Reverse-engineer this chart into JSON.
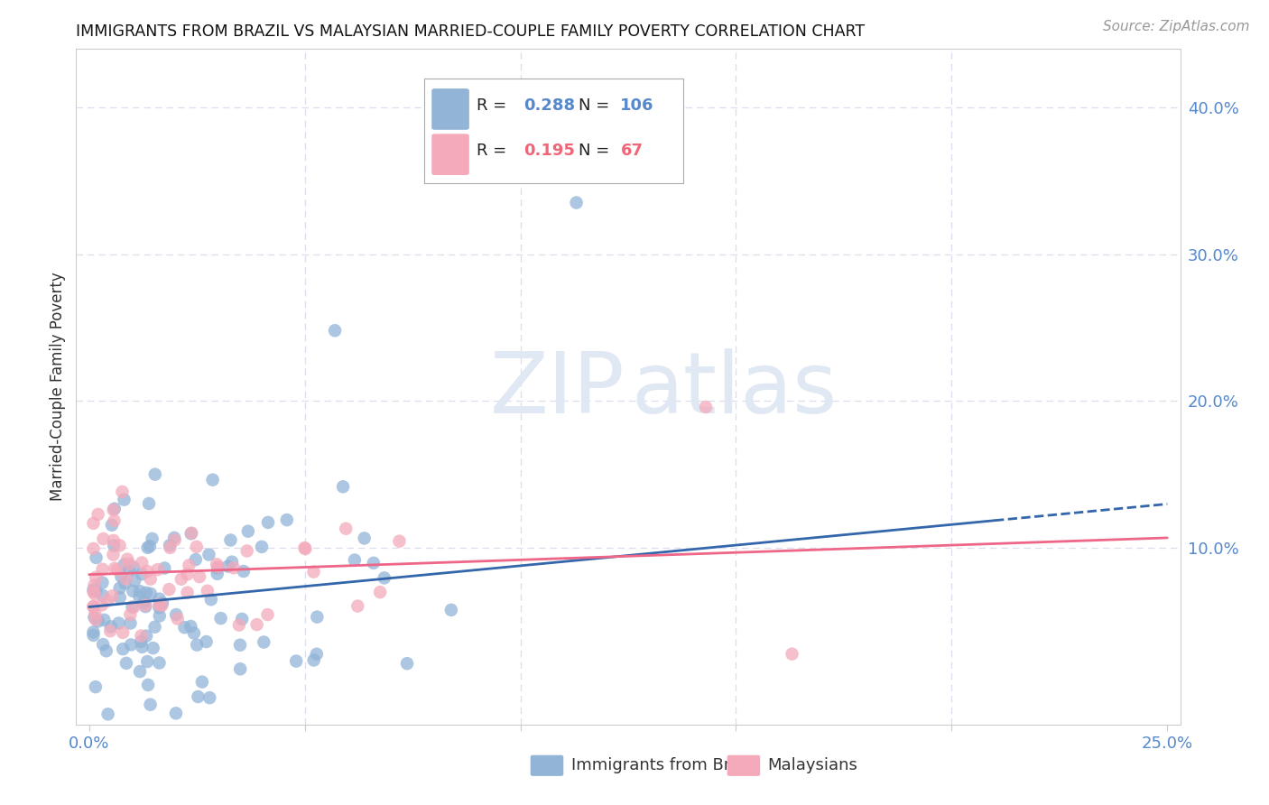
{
  "title": "IMMIGRANTS FROM BRAZIL VS MALAYSIAN MARRIED-COUPLE FAMILY POVERTY CORRELATION CHART",
  "source": "Source: ZipAtlas.com",
  "ylabel": "Married-Couple Family Poverty",
  "xlim": [
    0.0,
    0.25
  ],
  "ylim": [
    -0.02,
    0.44
  ],
  "color_brazil": "#92B4D7",
  "color_malaysia": "#F4AABB",
  "color_brazil_line": "#3366AA",
  "color_malaysia_line": "#EE6688",
  "color_axis_text": "#5588CC",
  "legend_brazil_R": "0.288",
  "legend_brazil_N": "106",
  "legend_malaysia_R": "0.195",
  "legend_malaysia_N": "67",
  "brazil_trend_start_y": 0.06,
  "brazil_trend_end_y": 0.13,
  "malaysia_trend_start_y": 0.082,
  "malaysia_trend_end_y": 0.107,
  "brazil_trend_solid_end_x": 0.21,
  "malaysia_trend_solid_end_x": 0.25,
  "grid_color": "#DDDDEE",
  "spine_color": "#CCCCCC",
  "watermark_text": "ZIPatlas",
  "watermark_color": "#E0E8F4"
}
